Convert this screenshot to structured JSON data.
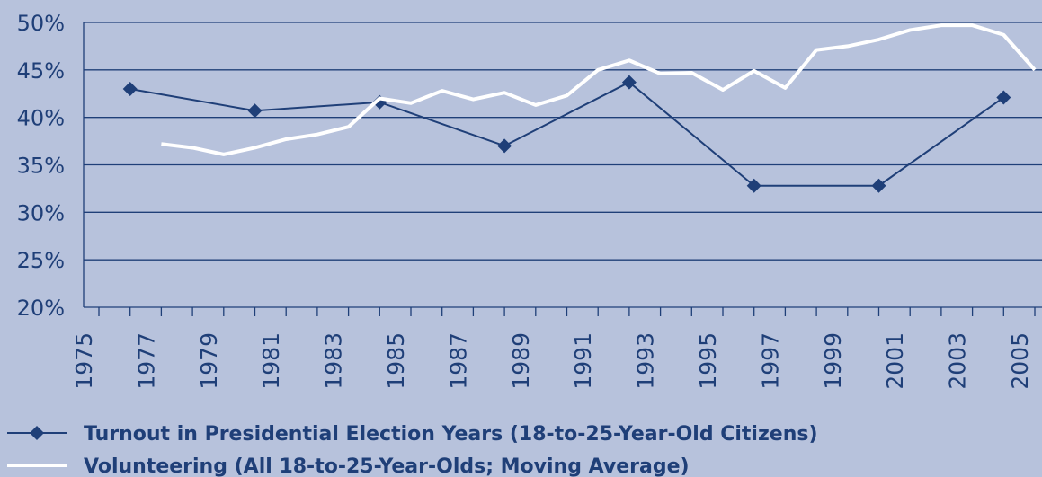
{
  "chart_data": {
    "type": "line",
    "x_categories": [
      "1975",
      "1977",
      "1979",
      "1981",
      "1983",
      "1985",
      "1987",
      "1989",
      "1991",
      "1993",
      "1995",
      "1997",
      "1999",
      "2001",
      "2003",
      "2005"
    ],
    "ylim": [
      20,
      50
    ],
    "y_ticks": [
      "20%",
      "25%",
      "30%",
      "35%",
      "40%",
      "45%",
      "50%"
    ],
    "grid": true,
    "legend_position": "bottom-left",
    "series": [
      {
        "name": "Turnout in Presidential Election Years (18-to-25-Year-Old Citizens)",
        "marker": "diamond",
        "color": "#1f3f78",
        "points": [
          {
            "x": 1976,
            "y": 43.0
          },
          {
            "x": 1980,
            "y": 40.7
          },
          {
            "x": 1984,
            "y": 41.6
          },
          {
            "x": 1988,
            "y": 37.0
          },
          {
            "x": 1992,
            "y": 43.7
          },
          {
            "x": 1996,
            "y": 32.8
          },
          {
            "x": 2000,
            "y": 32.8
          },
          {
            "x": 2004,
            "y": 42.1
          }
        ]
      },
      {
        "name": "Volunteering (All 18-to-25-Year-Olds; Moving Average)",
        "marker": "none",
        "color": "#ffffff",
        "points": [
          {
            "x": 1977,
            "y": 37.2
          },
          {
            "x": 1978,
            "y": 36.8
          },
          {
            "x": 1979,
            "y": 36.1
          },
          {
            "x": 1980,
            "y": 36.8
          },
          {
            "x": 1981,
            "y": 37.7
          },
          {
            "x": 1982,
            "y": 38.2
          },
          {
            "x": 1983,
            "y": 39.0
          },
          {
            "x": 1984,
            "y": 42.0
          },
          {
            "x": 1985,
            "y": 41.5
          },
          {
            "x": 1986,
            "y": 42.8
          },
          {
            "x": 1987,
            "y": 41.9
          },
          {
            "x": 1988,
            "y": 42.6
          },
          {
            "x": 1989,
            "y": 41.3
          },
          {
            "x": 1990,
            "y": 42.3
          },
          {
            "x": 1991,
            "y": 45.0
          },
          {
            "x": 1992,
            "y": 46.0
          },
          {
            "x": 1993,
            "y": 44.6
          },
          {
            "x": 1994,
            "y": 44.7
          },
          {
            "x": 1995,
            "y": 42.9
          },
          {
            "x": 1996,
            "y": 44.9
          },
          {
            "x": 1997,
            "y": 43.1
          },
          {
            "x": 1998,
            "y": 47.1
          },
          {
            "x": 1999,
            "y": 47.5
          },
          {
            "x": 2000,
            "y": 48.2
          },
          {
            "x": 2001,
            "y": 49.2
          },
          {
            "x": 2002,
            "y": 49.7
          },
          {
            "x": 2003,
            "y": 49.7
          },
          {
            "x": 2004,
            "y": 48.7
          },
          {
            "x": 2005,
            "y": 45.0
          }
        ]
      }
    ]
  }
}
